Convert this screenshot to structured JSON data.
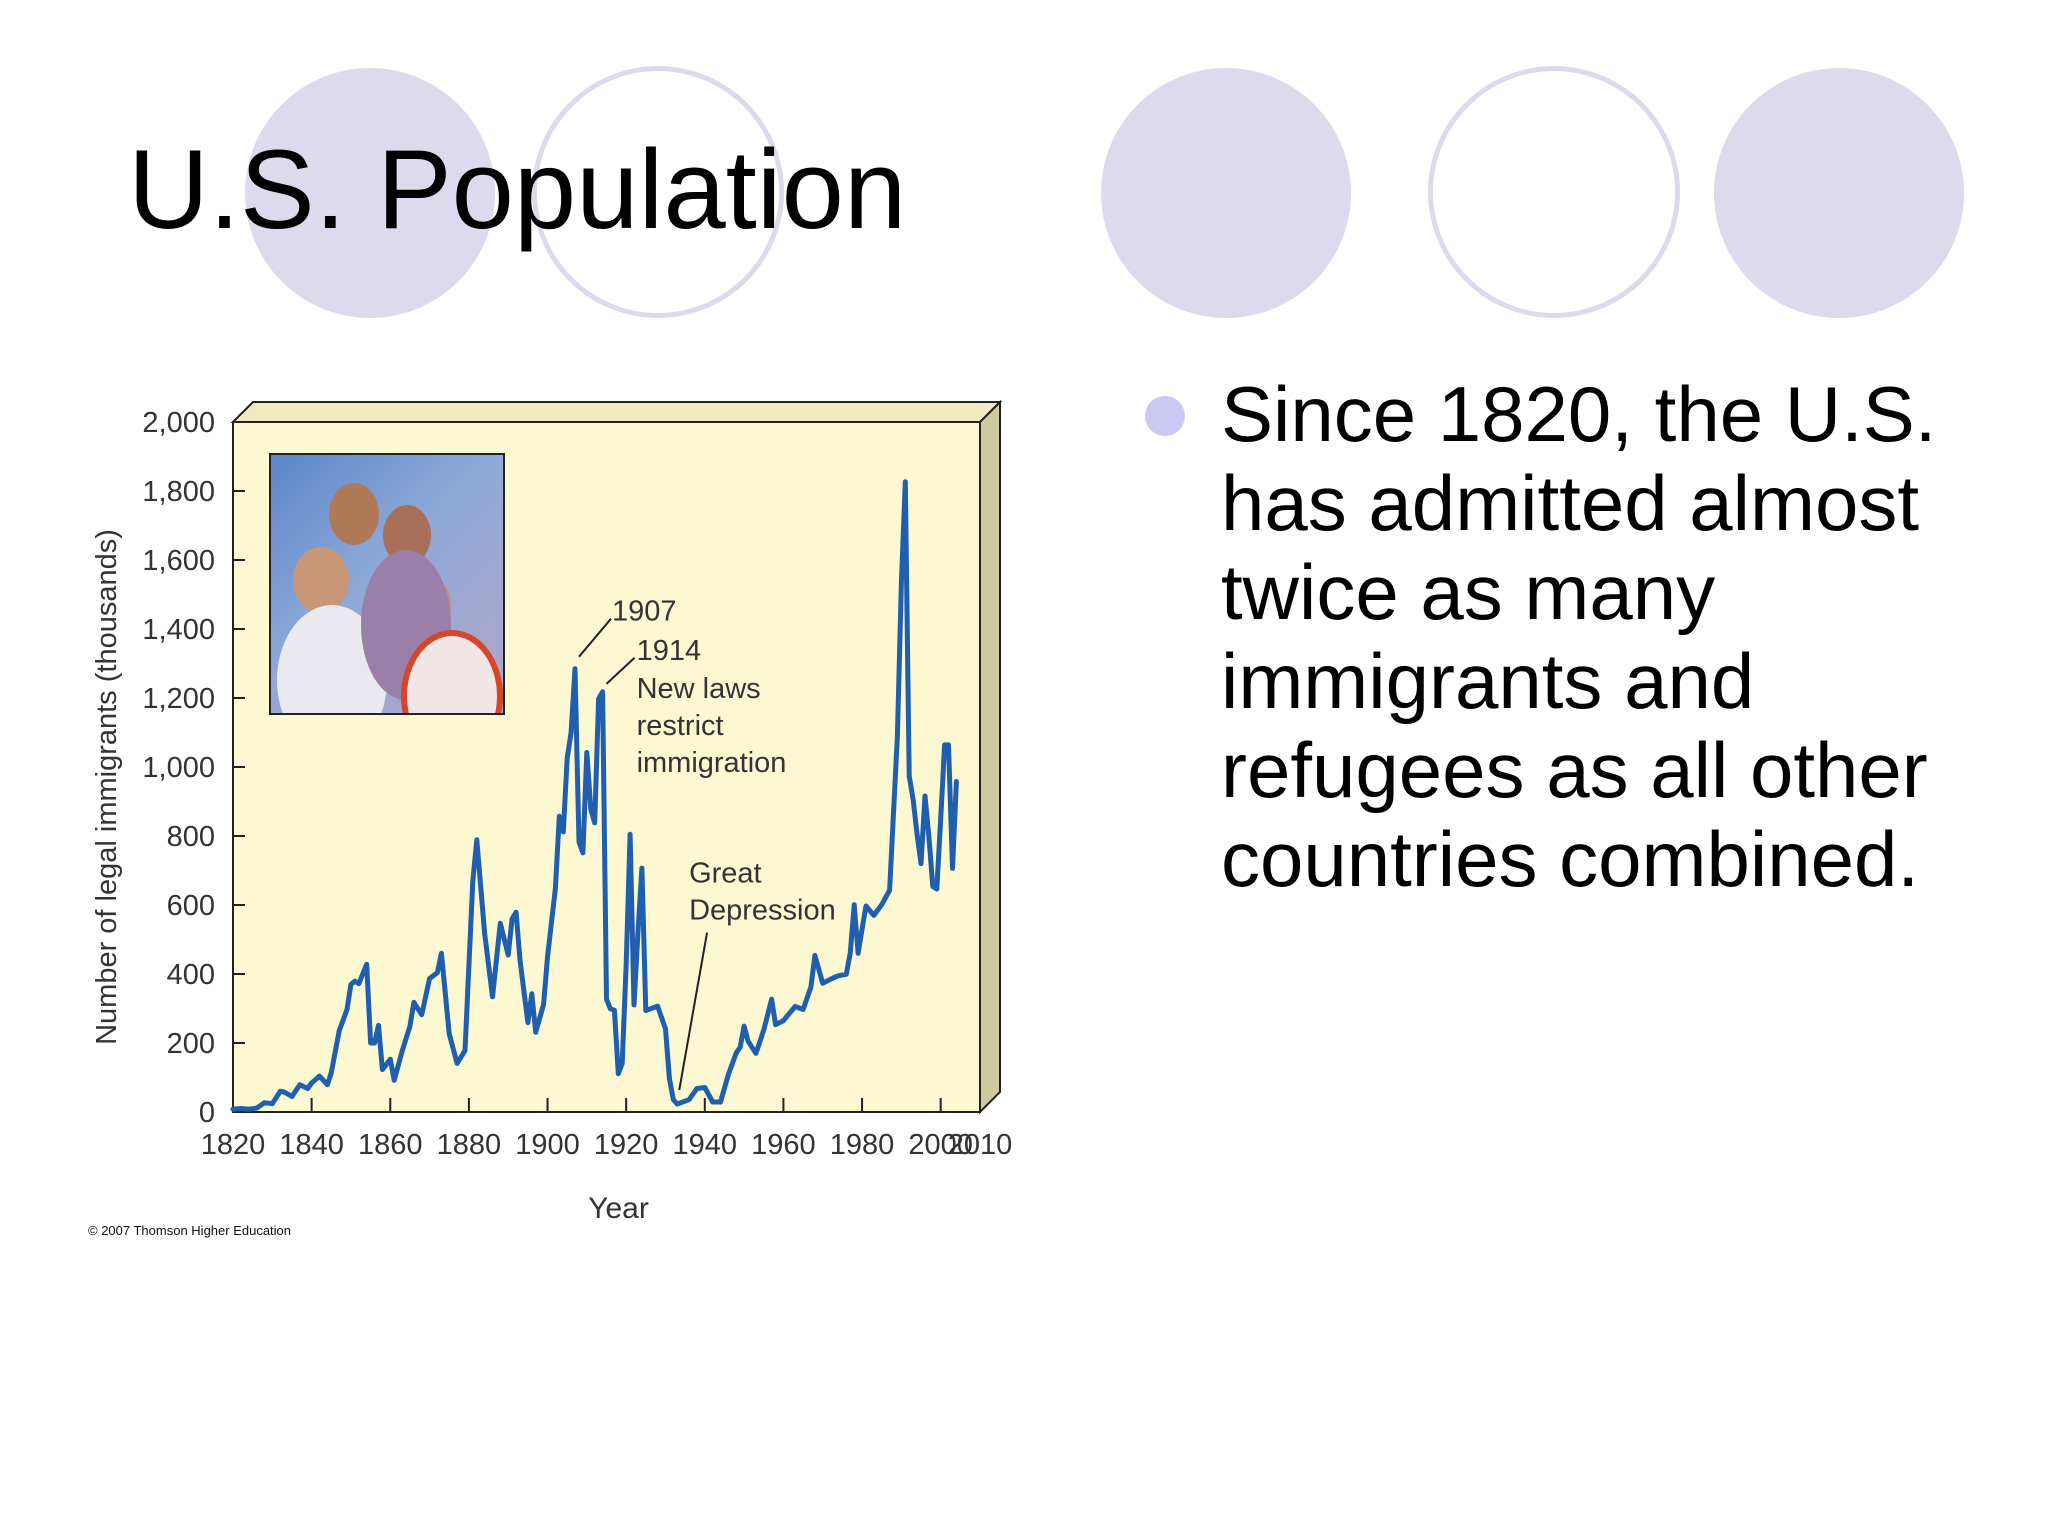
{
  "slide": {
    "title": "U.S. Population",
    "bullet": "Since 1820, the U.S. has admitted almost twice as many immigrants and refugees as all other countries combined.",
    "copyright": "© 2007 Thomson Higher Education",
    "decoration_colors": {
      "circle": "#dcdaec",
      "bullet": "#c9c9f2"
    },
    "photo_subject": "family-photo"
  },
  "chart_data": {
    "type": "line",
    "title": "",
    "xlabel": "Year",
    "ylabel": "Number of legal immigrants (thousands)",
    "xlim": [
      1820,
      2010
    ],
    "ylim": [
      0,
      2000
    ],
    "x_ticks": [
      1820,
      1840,
      1860,
      1880,
      1900,
      1920,
      1940,
      1960,
      1980,
      2000,
      2010
    ],
    "x_tick_labels": [
      "1820",
      "1840",
      "1860",
      "1880",
      "1900",
      "1920",
      "1940",
      "1960",
      "1980",
      "2000",
      "2010"
    ],
    "y_ticks": [
      0,
      200,
      400,
      600,
      800,
      1000,
      1200,
      1400,
      1600,
      1800,
      2000
    ],
    "y_tick_labels": [
      "0",
      "200",
      "400",
      "600",
      "800",
      "1,000",
      "1,200",
      "1,400",
      "1,600",
      "1,800",
      "2,000"
    ],
    "grid": false,
    "background_color": "#fbf8d2",
    "line_color": "#1f5fad",
    "annotations": [
      {
        "label": "1907",
        "x": 1907,
        "y": 1285
      },
      {
        "label": "1914",
        "x": 1914,
        "y": 1218
      },
      {
        "label": "New laws restrict immigration",
        "x": 1914,
        "y": 1218
      },
      {
        "label": "Great Depression",
        "x": 1933,
        "y": 23
      }
    ],
    "series": [
      {
        "x": [
          1820,
          1822,
          1824,
          1826,
          1828,
          1830,
          1832,
          1833,
          1835,
          1837,
          1839,
          1840,
          1842,
          1844,
          1845,
          1847,
          1849,
          1850,
          1851,
          1852,
          1854,
          1855,
          1856,
          1857,
          1858,
          1860,
          1861,
          1863,
          1865,
          1866,
          1868,
          1870,
          1872,
          1873,
          1875,
          1877,
          1879,
          1881,
          1882,
          1884,
          1886,
          1888,
          1890,
          1891,
          1892,
          1893,
          1895,
          1896,
          1897,
          1899,
          1900,
          1902,
          1903,
          1904,
          1905,
          1906,
          1907,
          1908,
          1909,
          1910,
          1911,
          1912,
          1913,
          1914,
          1915,
          1916,
          1917,
          1918,
          1919,
          1920,
          1921,
          1922,
          1923,
          1924,
          1925,
          1928,
          1930,
          1931,
          1932,
          1933,
          1936,
          1938,
          1940,
          1942,
          1944,
          1946,
          1948,
          1949,
          1950,
          1951,
          1953,
          1955,
          1957,
          1958,
          1960,
          1963,
          1965,
          1967,
          1968,
          1970,
          1972,
          1974,
          1976,
          1977,
          1978,
          1979,
          1980,
          1981,
          1983,
          1985,
          1987,
          1989,
          1990,
          1991,
          1992,
          1993,
          1994,
          1995,
          1996,
          1997,
          1998,
          1999,
          2000,
          2001,
          2002,
          2003,
          2004
        ],
        "y": [
          8,
          10,
          8,
          11,
          27,
          24,
          60,
          58,
          45,
          79,
          68,
          84,
          104,
          79,
          114,
          235,
          297,
          370,
          379,
          372,
          428,
          200,
          200,
          251,
          123,
          153,
          92,
          176,
          248,
          318,
          282,
          387,
          404,
          460,
          227,
          141,
          178,
          669,
          789,
          519,
          334,
          547,
          455,
          560,
          579,
          440,
          259,
          343,
          231,
          312,
          449,
          648,
          857,
          812,
          1026,
          1100,
          1285,
          783,
          751,
          1042,
          878,
          838,
          1198,
          1218,
          327,
          299,
          295,
          111,
          141,
          430,
          805,
          310,
          523,
          707,
          294,
          307,
          241,
          97,
          36,
          23,
          36,
          68,
          71,
          29,
          29,
          109,
          171,
          188,
          249,
          206,
          170,
          238,
          327,
          253,
          265,
          306,
          297,
          362,
          454,
          373,
          385,
          395,
          399,
          462,
          601,
          460,
          531,
          597,
          570,
          601,
          643,
          1091,
          1536,
          1827,
          974,
          904,
          804,
          720,
          916,
          798,
          654,
          646,
          850,
          1064,
          1064,
          706,
          958
        ]
      }
    ]
  }
}
